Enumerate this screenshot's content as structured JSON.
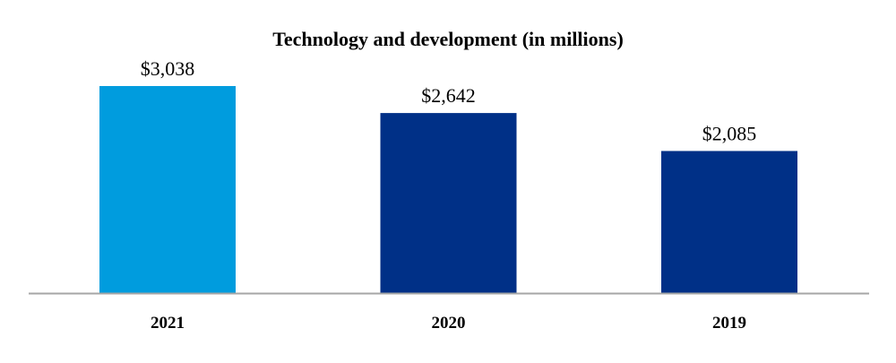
{
  "chart_data": {
    "type": "bar",
    "title": "Technology and development (in millions)",
    "xlabel": "",
    "ylabel": "",
    "categories": [
      "2021",
      "2020",
      "2019"
    ],
    "values": [
      3038,
      2642,
      2085
    ],
    "data_labels": [
      "$3,038",
      "$2,642",
      "$2,085"
    ],
    "colors": [
      "#009CDE",
      "#003087",
      "#003087"
    ],
    "axis_color": "#A6A6A6",
    "ylim": [
      0,
      3038
    ],
    "grid": false,
    "legend": "none"
  }
}
